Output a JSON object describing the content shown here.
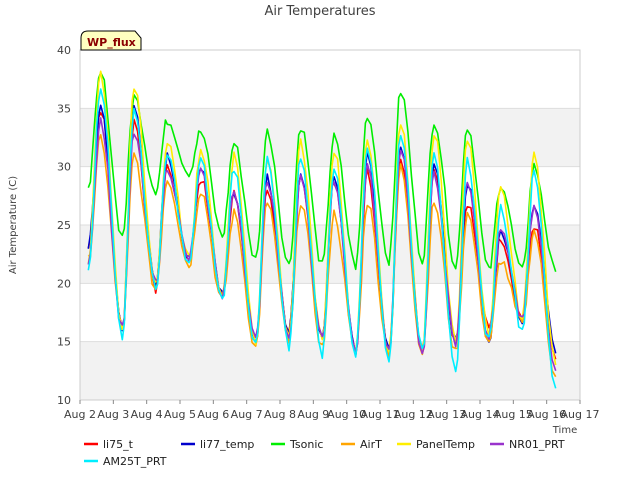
{
  "chart_data": {
    "type": "line",
    "title": "Air Temperatures",
    "badge": "WP_flux",
    "xlabel": "Time",
    "ylabel": "Air Temperature (C)",
    "x_ticks": [
      "Aug 2",
      "Aug 3",
      "Aug 4",
      "Aug 5",
      "Aug 6",
      "Aug 7",
      "Aug 8",
      "Aug 9",
      "Aug 10",
      "Aug 11",
      "Aug 12",
      "Aug 13",
      "Aug 14",
      "Aug 15",
      "Aug 16",
      "Aug 17"
    ],
    "y_ticks": [
      10,
      15,
      20,
      25,
      30,
      35,
      40
    ],
    "ylim": [
      10,
      40
    ],
    "xlim_days": [
      0,
      15
    ],
    "grid": true,
    "legend_position": "bottom",
    "days_daily_extremes": {
      "day": [
        0.25,
        1.0,
        2.0,
        3.0,
        4.0,
        5.0,
        6.0,
        7.0,
        8.0,
        9.0,
        10.0,
        11.0,
        12.0,
        13.0,
        14.0,
        14.2
      ],
      "note_only_for_shape": ""
    },
    "series": [
      {
        "name": "li75_t",
        "color": "#ff0000",
        "daily_min": [
          23,
          16,
          19.5,
          22,
          19,
          15,
          16,
          15.5,
          14,
          14,
          14.5,
          15,
          16,
          17,
          13.5,
          14
        ],
        "daily_max": [
          22,
          35,
          34,
          30,
          29,
          28,
          28,
          29,
          29,
          29.5,
          31,
          30,
          27,
          24,
          25,
          15
        ],
        "offset_max": 0
      },
      {
        "name": "li77_temp",
        "color": "#0000cc",
        "daily_min": [
          23,
          16,
          20,
          22,
          19,
          15,
          16,
          15,
          14,
          14,
          14,
          15,
          15,
          17,
          14,
          15
        ],
        "daily_max": [
          22,
          35,
          35,
          31,
          30,
          28,
          29,
          29.5,
          29.5,
          31,
          32,
          30,
          28.5,
          24.5,
          27,
          15
        ],
        "offset_max": 0
      },
      {
        "name": "Tsonic",
        "color": "#00ee00",
        "daily_min": [
          28.5,
          24,
          28,
          29.5,
          24,
          22,
          21.5,
          21.5,
          21.5,
          22,
          22,
          21.5,
          21,
          21,
          21,
          21
        ],
        "daily_max": [
          28.5,
          38,
          36,
          34,
          33,
          32,
          33,
          33.5,
          32.5,
          34.5,
          36.5,
          34,
          33.5,
          28.5,
          30,
          21
        ],
        "offset_max": 0
      },
      {
        "name": "AirT",
        "color": "#ffa500",
        "daily_min": [
          22,
          16,
          19.5,
          21.5,
          18.5,
          14.5,
          15,
          14.5,
          14,
          14,
          14,
          14,
          15,
          16.5,
          12,
          14
        ],
        "daily_max": [
          21,
          32.5,
          31,
          29,
          28,
          26,
          27,
          27,
          26,
          27,
          30,
          27,
          26,
          22,
          24.5,
          14
        ],
        "offset_max": 0
      },
      {
        "name": "PanelTemp",
        "color": "#ffee00",
        "daily_min": [
          22,
          16,
          20,
          22,
          19,
          15,
          15.5,
          15,
          14,
          14,
          14,
          15,
          15.5,
          17,
          13,
          14
        ],
        "daily_max": [
          22,
          38,
          37,
          32,
          31.5,
          31,
          31,
          32,
          31.5,
          32.5,
          34,
          33,
          32.5,
          28,
          31,
          14
        ],
        "offset_max": 0
      },
      {
        "name": "NR01_PRT",
        "color": "#9933cc",
        "daily_min": [
          22,
          16,
          20,
          22,
          19,
          15,
          15.5,
          15,
          14,
          14,
          14,
          15,
          15.5,
          17,
          12.5,
          14
        ],
        "daily_max": [
          22,
          34,
          33,
          30,
          29.5,
          28,
          29,
          29,
          29,
          30,
          31.5,
          29.5,
          29,
          24.5,
          26.5,
          14
        ],
        "offset_max": 0
      },
      {
        "name": "AM25T_PRT",
        "color": "#00eeff",
        "daily_min": [
          21.5,
          15.5,
          19.5,
          21.5,
          18.5,
          14.5,
          14.5,
          14,
          14,
          13.5,
          14,
          12,
          15,
          16,
          11,
          13.5
        ],
        "daily_max": [
          21,
          37,
          35,
          31,
          30.5,
          30,
          30.5,
          31,
          30,
          32,
          33,
          31.5,
          30.5,
          26.5,
          29.5,
          13.5
        ],
        "offset_max": 0
      }
    ]
  }
}
